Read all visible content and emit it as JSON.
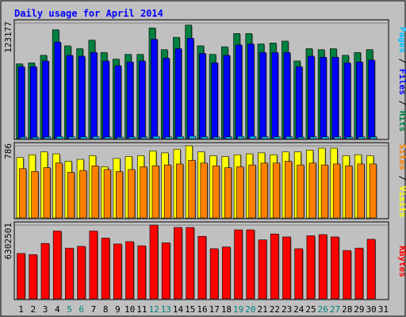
{
  "title": "Daily usage for April 2014",
  "colors": {
    "background": "#c0c0c0",
    "title": "#0000ff",
    "hits": "#008040",
    "files": "#0000ff",
    "pages": "#00c0ff",
    "visits": "#ffff00",
    "sites": "#ff8000",
    "kbytes": "#ff0000",
    "weekend_label": "#008080",
    "weekday_label": "#000000",
    "divider_label": "#000000"
  },
  "chart_data": [
    {
      "type": "bar",
      "title": "Daily usage for April 2014",
      "panel": "hits-files-pages",
      "x": [
        1,
        2,
        3,
        4,
        5,
        6,
        7,
        8,
        9,
        10,
        11,
        12,
        13,
        14,
        15,
        16,
        17,
        18,
        19,
        20,
        21,
        22,
        23,
        24,
        25,
        26,
        27,
        28,
        29,
        30,
        31
      ],
      "y_tick_label": "123177",
      "y_tick_value": 123177,
      "ylim": [
        0,
        123177
      ],
      "legend": [
        {
          "text": "Pages",
          "color": "#00c0ff"
        },
        {
          "text": " / ",
          "color": "#000000"
        },
        {
          "text": "Files",
          "color": "#0000ff"
        },
        {
          "text": " / ",
          "color": "#000000"
        },
        {
          "text": "Hits",
          "color": "#008040"
        }
      ],
      "series": [
        {
          "name": "Hits",
          "values": [
            80000,
            81000,
            89000,
            116000,
            99000,
            96000,
            105000,
            92000,
            85000,
            90000,
            90000,
            118000,
            95000,
            108000,
            121000,
            99000,
            90000,
            98000,
            112000,
            112000,
            101000,
            102000,
            104000,
            83000,
            96000,
            95000,
            96000,
            89000,
            92000,
            95000,
            0
          ]
        },
        {
          "name": "Files",
          "values": [
            77000,
            77000,
            83000,
            103000,
            89000,
            88000,
            92000,
            83000,
            78000,
            82000,
            83000,
            106000,
            86000,
            96000,
            107000,
            91000,
            81000,
            89000,
            100000,
            101000,
            92000,
            92000,
            92000,
            77000,
            88000,
            87000,
            87000,
            81000,
            82000,
            84000,
            0
          ]
        },
        {
          "name": "Pages",
          "values": [
            2500,
            2500,
            2700,
            3200,
            2800,
            2800,
            3000,
            2700,
            2500,
            2600,
            2600,
            3300,
            2700,
            3100,
            3400,
            2900,
            2600,
            2800,
            3200,
            3300,
            2900,
            2900,
            3000,
            2500,
            2800,
            2800,
            2800,
            2600,
            2700,
            2800,
            0
          ]
        }
      ]
    },
    {
      "type": "bar",
      "panel": "visits-sites",
      "x": [
        1,
        2,
        3,
        4,
        5,
        6,
        7,
        8,
        9,
        10,
        11,
        12,
        13,
        14,
        15,
        16,
        17,
        18,
        19,
        20,
        21,
        22,
        23,
        24,
        25,
        26,
        27,
        28,
        29,
        30,
        31
      ],
      "y_tick_label": "786",
      "y_tick_value": 786,
      "ylim": [
        0,
        786
      ],
      "legend": [
        {
          "text": "Sites",
          "color": "#ff8000"
        },
        {
          "text": " / ",
          "color": "#000000"
        },
        {
          "text": "Visits",
          "color": "#ffff00"
        }
      ],
      "series": [
        {
          "name": "Visits",
          "values": [
            660,
            690,
            720,
            700,
            620,
            640,
            680,
            560,
            650,
            670,
            680,
            730,
            710,
            750,
            786,
            720,
            680,
            670,
            690,
            700,
            710,
            690,
            720,
            720,
            740,
            760,
            760,
            680,
            690,
            680,
            0
          ]
        },
        {
          "name": "Sites",
          "values": [
            540,
            510,
            550,
            600,
            500,
            520,
            570,
            530,
            510,
            530,
            560,
            570,
            580,
            590,
            630,
            600,
            570,
            550,
            560,
            580,
            600,
            600,
            620,
            580,
            600,
            580,
            590,
            570,
            590,
            590,
            0
          ]
        }
      ]
    },
    {
      "type": "bar",
      "panel": "kbytes",
      "x": [
        1,
        2,
        3,
        4,
        5,
        6,
        7,
        8,
        9,
        10,
        11,
        12,
        13,
        14,
        15,
        16,
        17,
        18,
        19,
        20,
        21,
        22,
        23,
        24,
        25,
        26,
        27,
        28,
        29,
        30,
        31
      ],
      "y_tick_label": "6302501",
      "y_tick_value": 6302501,
      "ylim": [
        0,
        6302501
      ],
      "legend": [
        {
          "text": "KBytes",
          "color": "#ff0000"
        }
      ],
      "series": [
        {
          "name": "KBytes",
          "values": [
            3900000,
            3800000,
            4750000,
            5800000,
            4350000,
            4500000,
            5800000,
            5200000,
            4700000,
            4900000,
            4550000,
            6302501,
            4800000,
            6100000,
            6100000,
            5350000,
            4300000,
            4450000,
            5900000,
            5900000,
            5050000,
            5550000,
            5300000,
            4300000,
            5400000,
            5500000,
            5300000,
            4150000,
            4350000,
            5100000,
            0
          ]
        }
      ]
    }
  ],
  "weekend_days": [
    5,
    6,
    12,
    13,
    19,
    20,
    26,
    27
  ]
}
